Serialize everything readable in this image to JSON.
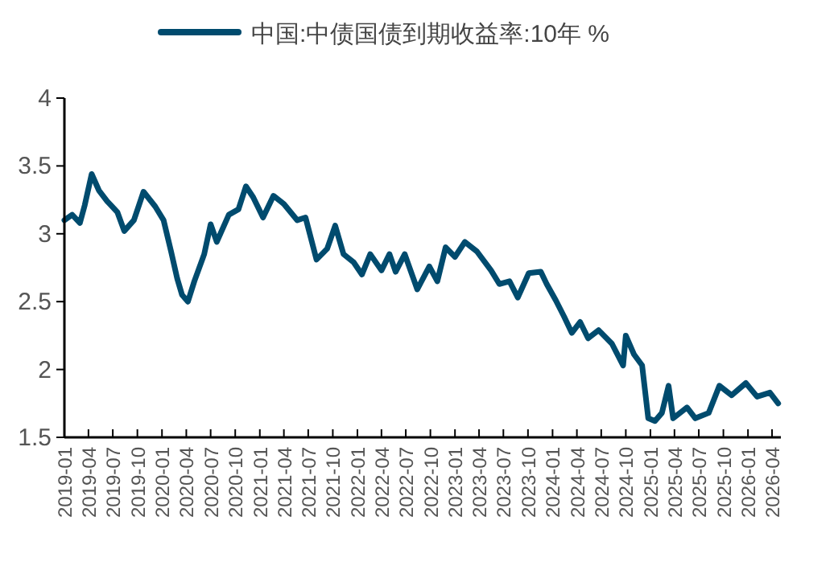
{
  "chart_data": {
    "type": "line",
    "x": [
      "2019-01-01",
      "2019-01-30",
      "2019-02-28",
      "2019-03-18",
      "2019-04-13",
      "2019-05-10",
      "2019-06-10",
      "2019-07-18",
      "2019-08-13",
      "2019-09-18",
      "2019-10-24",
      "2019-12-07",
      "2020-01-07",
      "2020-02-04",
      "2020-02-27",
      "2020-03-16",
      "2020-04-07",
      "2020-05-01",
      "2020-06-07",
      "2020-07-01",
      "2020-07-24",
      "2020-09-07",
      "2020-10-13",
      "2020-11-10",
      "2020-12-07",
      "2021-01-13",
      "2021-02-21",
      "2021-04-01",
      "2021-05-21",
      "2021-06-21",
      "2021-08-01",
      "2021-09-10",
      "2021-10-10",
      "2021-11-10",
      "2021-12-18",
      "2022-01-18",
      "2022-02-18",
      "2022-04-01",
      "2022-05-01",
      "2022-05-24",
      "2022-06-27",
      "2022-08-13",
      "2022-09-27",
      "2022-10-27",
      "2022-11-27",
      "2023-01-01",
      "2023-02-07",
      "2023-03-24",
      "2023-05-16",
      "2023-06-16",
      "2023-07-24",
      "2023-08-24",
      "2023-10-04",
      "2023-11-18",
      "2023-12-10",
      "2024-01-13",
      "2024-02-13",
      "2024-03-13",
      "2024-04-13",
      "2024-05-13",
      "2024-06-21",
      "2024-08-10",
      "2024-09-21",
      "2024-10-01",
      "2024-11-01",
      "2024-12-01",
      "2024-12-24",
      "2025-01-18",
      "2025-02-13",
      "2025-03-10",
      "2025-03-27",
      "2025-05-18",
      "2025-06-18",
      "2025-08-07",
      "2025-09-16",
      "2025-11-01",
      "2025-12-24",
      "2026-02-04",
      "2026-03-24",
      "2026-04-24"
    ],
    "series": [
      {
        "name": "中国:中债国债到期收益率:10年 %",
        "color": "#004b6e",
        "values": [
          3.1,
          3.14,
          3.08,
          3.21,
          3.44,
          3.32,
          3.24,
          3.16,
          3.02,
          3.1,
          3.31,
          3.2,
          3.1,
          2.87,
          2.67,
          2.55,
          2.5,
          2.65,
          2.85,
          3.07,
          2.94,
          3.14,
          3.18,
          3.35,
          3.27,
          3.12,
          3.28,
          3.22,
          3.1,
          3.12,
          2.81,
          2.89,
          3.06,
          2.85,
          2.79,
          2.7,
          2.85,
          2.73,
          2.85,
          2.72,
          2.85,
          2.59,
          2.76,
          2.65,
          2.9,
          2.83,
          2.94,
          2.87,
          2.73,
          2.63,
          2.65,
          2.53,
          2.71,
          2.72,
          2.63,
          2.51,
          2.39,
          2.27,
          2.35,
          2.23,
          2.29,
          2.19,
          2.03,
          2.25,
          2.11,
          2.03,
          1.64,
          1.62,
          1.68,
          1.88,
          1.64,
          1.72,
          1.64,
          1.68,
          1.88,
          1.81,
          1.9,
          1.8,
          1.83,
          1.75
        ]
      }
    ],
    "xlim": [
      "2019-01",
      "2026-05-04"
    ],
    "xticks": [
      "2019-01",
      "2019-04",
      "2019-07",
      "2019-10",
      "2020-01",
      "2020-04",
      "2020-07",
      "2020-10",
      "2021-01",
      "2021-04",
      "2021-07",
      "2021-10",
      "2022-01",
      "2022-04",
      "2022-07",
      "2022-10",
      "2023-01",
      "2023-04",
      "2023-07",
      "2023-10",
      "2024-01",
      "2024-04",
      "2024-07",
      "2024-10",
      "2025-01",
      "2025-04",
      "2025-07",
      "2025-10",
      "2026-01",
      "2026-04"
    ],
    "ylim": [
      1.5,
      4
    ],
    "yticks": [
      1.5,
      2,
      2.5,
      3,
      3.5,
      4
    ],
    "legend": "top",
    "grid": false,
    "marker": "none",
    "line_style": "solid"
  }
}
